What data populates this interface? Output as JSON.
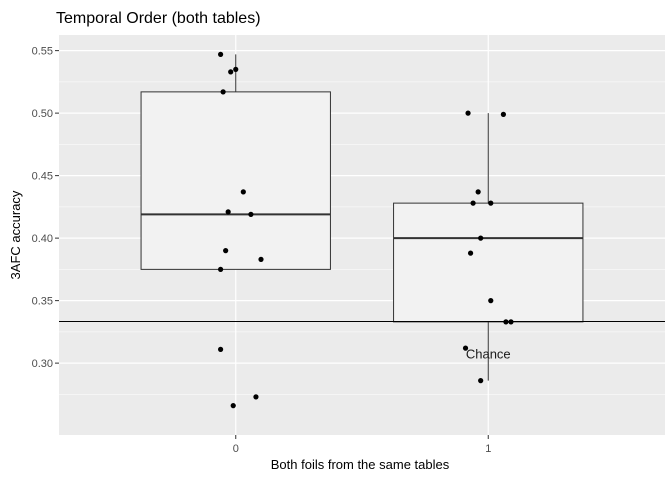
{
  "chart_data": {
    "type": "box",
    "title": "Temporal Order (both tables)",
    "xlabel": "Both foils from the same tables",
    "ylabel": "3AFC accuracy",
    "categories": [
      "0",
      "1"
    ],
    "ylim": [
      0.2425,
      0.5625
    ],
    "yticks": [
      "0.30",
      "0.35",
      "0.40",
      "0.45",
      "0.50",
      "0.55"
    ],
    "grid": true,
    "colors": {
      "panel": "#ebebeb",
      "grid": "#ffffff",
      "box_fill": "#f2f2f2",
      "box_stroke": "#333333",
      "points": "#000000",
      "reference_line": "#000000"
    },
    "boxes": [
      {
        "category": "0",
        "lower": 0.375,
        "q1": 0.375,
        "median": 0.419,
        "q3": 0.517,
        "upper": 0.547
      },
      {
        "category": "1",
        "lower": 0.286,
        "q1": 0.333,
        "median": 0.4,
        "q3": 0.428,
        "upper": 0.5
      }
    ],
    "points": [
      {
        "category": "0",
        "jitter": -0.06,
        "y": 0.547
      },
      {
        "category": "0",
        "jitter": -0.02,
        "y": 0.533
      },
      {
        "category": "0",
        "jitter": 0.0,
        "y": 0.535
      },
      {
        "category": "0",
        "jitter": -0.05,
        "y": 0.517
      },
      {
        "category": "0",
        "jitter": 0.03,
        "y": 0.437
      },
      {
        "category": "0",
        "jitter": -0.03,
        "y": 0.421
      },
      {
        "category": "0",
        "jitter": 0.06,
        "y": 0.419
      },
      {
        "category": "0",
        "jitter": -0.04,
        "y": 0.39
      },
      {
        "category": "0",
        "jitter": 0.1,
        "y": 0.383
      },
      {
        "category": "0",
        "jitter": -0.06,
        "y": 0.375
      },
      {
        "category": "0",
        "jitter": -0.06,
        "y": 0.311
      },
      {
        "category": "0",
        "jitter": -0.01,
        "y": 0.266
      },
      {
        "category": "0",
        "jitter": 0.08,
        "y": 0.273
      },
      {
        "category": "1",
        "jitter": -0.08,
        "y": 0.5
      },
      {
        "category": "1",
        "jitter": 0.06,
        "y": 0.499
      },
      {
        "category": "1",
        "jitter": -0.04,
        "y": 0.437
      },
      {
        "category": "1",
        "jitter": -0.06,
        "y": 0.428
      },
      {
        "category": "1",
        "jitter": 0.01,
        "y": 0.428
      },
      {
        "category": "1",
        "jitter": -0.03,
        "y": 0.4
      },
      {
        "category": "1",
        "jitter": -0.07,
        "y": 0.388
      },
      {
        "category": "1",
        "jitter": 0.01,
        "y": 0.35
      },
      {
        "category": "1",
        "jitter": 0.07,
        "y": 0.333
      },
      {
        "category": "1",
        "jitter": 0.09,
        "y": 0.333
      },
      {
        "category": "1",
        "jitter": -0.09,
        "y": 0.312
      },
      {
        "category": "1",
        "jitter": -0.03,
        "y": 0.286
      }
    ],
    "reference_line": {
      "y": 0.3333,
      "label": "Chance"
    }
  }
}
